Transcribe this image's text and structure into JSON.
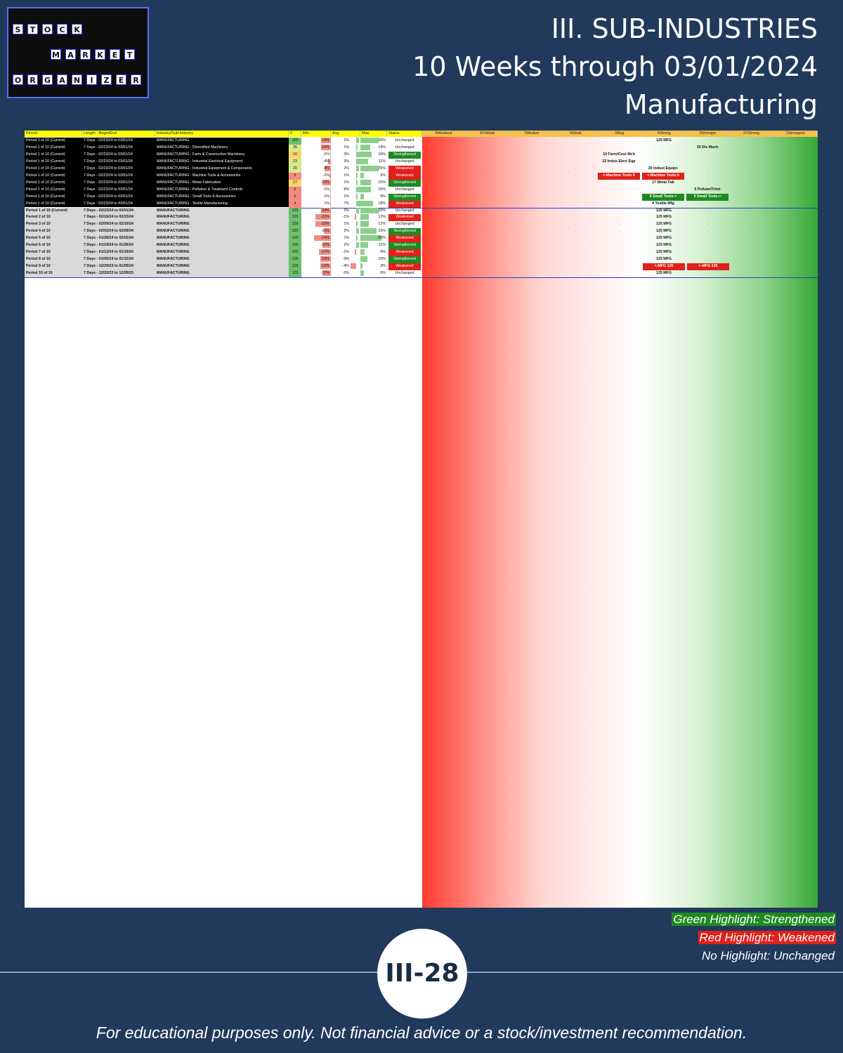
{
  "logo": {
    "words": [
      "STOCK",
      "MARKET",
      "ORGANIZER"
    ]
  },
  "title": {
    "line1": "III. SUB-INDUSTRIES",
    "line2": "10 Weeks through 03/01/2024",
    "line3": "Manufacturing"
  },
  "table": {
    "headers": [
      "Period",
      "Length - Begin/End",
      "Industry/Sub-Industry",
      "#",
      "Min",
      "Avg",
      "Max",
      "Status",
      "9Weakest",
      "8VWeak",
      "7Weaker",
      "6Weak",
      "5Avg",
      "4Strong",
      "3Stronger",
      "2VStrong",
      "1Strongest"
    ],
    "groups": [
      {
        "type": "current",
        "rows": [
          {
            "p": "Period 1 of 10 (Current)",
            "d": "7 Days - 02/23/24 to 03/01/24",
            "i": "MANUFACTURING",
            "n": "125",
            "min": "-14%",
            "avg": "2%",
            "max": "26%",
            "st": "Unchanged",
            "lab": [
              "125 MFG"
            ]
          },
          {
            "p": "Period 1 of 10 (Current)",
            "d": "7 Days - 02/23/24 to 03/01/24",
            "i": "MANUFACTURING - Diversified Machinery",
            "n": "35",
            "min": "-14%",
            "avg": "1%",
            "max": "14%",
            "st": "Unchanged",
            "lab": [
              "35 Div Mach"
            ]
          },
          {
            "p": "Period 1 of 10 (Current)",
            "d": "7 Days - 02/23/24 to 03/01/24",
            "i": "MANUFACTURING - Farm & Construction Machinery",
            "n": "10",
            "min": "-1%",
            "avg": "3%",
            "max": "16%",
            "st": "Strengthened",
            "lab": [
              "10 Farm/Cnst Mch"
            ]
          },
          {
            "p": "Period 1 of 10 (Current)",
            "d": "7 Days - 02/23/24 to 03/01/24",
            "i": "MANUFACTURING - Industrial Electrical Equipment",
            "n": "23",
            "min": "-4%",
            "avg": "3%",
            "max": "11%",
            "st": "Unchanged",
            "lab": [
              "23 Indus Elect Eqp"
            ]
          },
          {
            "p": "Period 1 of 10 (Current)",
            "d": "7 Days - 02/23/24 to 03/01/24",
            "i": "MANUFACTURING - Industrial Equipment & Components",
            "n": "20",
            "min": "-9%",
            "avg": "2%",
            "max": "26%",
            "st": "Weakened",
            "lab": [
              "20 Indust Equip+"
            ]
          },
          {
            "p": "Period 1 of 10 (Current)",
            "d": "7 Days - 02/23/24 to 03/01/24",
            "i": "MANUFACTURING - Machine Tools & Accessories",
            "n": "6",
            "min": "-2%",
            "avg": "1%",
            "max": "5%",
            "st": "Weakened",
            "lab": [
              "<-Machine Tools 6",
              "<-Machine Tools 6"
            ]
          },
          {
            "p": "Period 1 of 10 (Current)",
            "d": "7 Days - 02/23/24 to 03/01/24",
            "i": "MANUFACTURING - Metal Fabrication",
            "n": "17",
            "min": "-12%",
            "avg": "1%",
            "max": "15%",
            "st": "Strengthened",
            "lab": [
              "17 Metal Fab"
            ]
          },
          {
            "p": "Period 1 of 10 (Current)",
            "d": "7 Days - 02/23/24 to 03/01/24",
            "i": "MANUFACTURING - Pollution & Treatment Controls",
            "n": "5",
            "min": "-1%",
            "avg": "8%",
            "max": "15%",
            "st": "Unchanged",
            "lab": [
              "5 Pollutn/Trtmt"
            ]
          },
          {
            "p": "Period 1 of 10 (Current)",
            "d": "7 Days - 02/23/24 to 03/01/24",
            "i": "MANUFACTURING - Small Tools & Accessories",
            "n": "5",
            "min": "-1%",
            "avg": "1%",
            "max": "5%",
            "st": "Strengthened",
            "lab": [
              "5 Small Tools->",
              "5 Small Tools->"
            ]
          },
          {
            "p": "Period 1 of 10 (Current)",
            "d": "7 Days - 02/23/24 to 03/01/24",
            "i": "MANUFACTURING - Textile Manufacturing",
            "n": "4",
            "min": "1%",
            "avg": "7%",
            "max": "18%",
            "st": "Weakened",
            "lab": [
              "4 Textile Mfg"
            ]
          }
        ]
      },
      {
        "type": "mfg",
        "rows": [
          {
            "p": "Period 1 of 10 (Current)",
            "d": "7 Days - 02/23/24 to 03/01/24",
            "i": "MANUFACTURING",
            "n": "125",
            "min": "-14%",
            "avg": "2%",
            "max": "26%",
            "st": "Unchanged",
            "lab": [
              "125 MFG"
            ]
          },
          {
            "p": "Period 2 of 10",
            "d": "7 Days - 02/16/24 to 02/23/24",
            "i": "MANUFACTURING",
            "n": "125",
            "min": "-22%",
            "avg": "-1%",
            "max": "12%",
            "st": "Weakened",
            "lab": [
              "125 MFG"
            ]
          },
          {
            "p": "Period 3 of 10",
            "d": "7 Days - 02/09/24 to 02/16/24",
            "i": "MANUFACTURING",
            "n": "125",
            "min": "-22%",
            "avg": "1%",
            "max": "12%",
            "st": "Unchanged",
            "lab": [
              "125 MFG"
            ]
          },
          {
            "p": "Period 4 of 10",
            "d": "7 Days - 02/02/24 to 02/09/24",
            "i": "MANUFACTURING",
            "n": "125",
            "min": "-10%",
            "avg": "2%",
            "max": "23%",
            "st": "Strengthened",
            "lab": [
              "125 MFG"
            ]
          },
          {
            "p": "Period 5 of 10",
            "d": "7 Days - 01/26/24 to 02/02/24",
            "i": "MANUFACTURING",
            "n": "125",
            "min": "-24%",
            "avg": "1%",
            "max": "60%",
            "st": "Weakened",
            "lab": [
              "125 MFG"
            ]
          },
          {
            "p": "Period 6 of 10",
            "d": "7 Days - 01/19/24 to 01/26/24",
            "i": "MANUFACTURING",
            "n": "125",
            "min": "-12%",
            "avg": "2%",
            "max": "11%",
            "st": "Strengthened",
            "lab": [
              "125 MFG"
            ]
          },
          {
            "p": "Period 7 of 10",
            "d": "7 Days - 01/12/24 to 01/19/24",
            "i": "MANUFACTURING",
            "n": "125",
            "min": "-17%",
            "avg": "-1%",
            "max": "6%",
            "st": "Weakened",
            "lab": [
              "125 MFG"
            ]
          },
          {
            "p": "Period 8 of 10",
            "d": "7 Days - 01/05/24 to 01/12/24",
            "i": "MANUFACTURING",
            "n": "125",
            "min": "-15%",
            "avg": "0%",
            "max": "10%",
            "st": "Strengthened",
            "lab": [
              "125 MFG"
            ]
          },
          {
            "p": "Period 9 of 10",
            "d": "7 Days - 12/29/23 to 01/05/24",
            "i": "MANUFACTURING",
            "n": "125",
            "min": "-15%",
            "avg": "-4%",
            "max": "3%",
            "st": "Weakened",
            "lab": [
              "<-MFG 125",
              "<-MFG 125"
            ]
          },
          {
            "p": "Period 10 of 10",
            "d": "7 Days - 12/22/23 to 12/29/23",
            "i": "MANUFACTURING",
            "n": "125",
            "min": "-12%",
            "avg": "0%",
            "max": "5%",
            "st": "Unchanged",
            "lab": [
              "125 MFG"
            ]
          }
        ]
      }
    ]
  },
  "legend": {
    "strengthened": "Green Highlight: Strengthened",
    "weakened": "Red Highlight: Weakened",
    "unchanged": "No Highlight: Unchanged"
  },
  "page_number": "III-28",
  "footer": "For educational purposes only. Not financial advice or a stock/investment recommendation."
}
